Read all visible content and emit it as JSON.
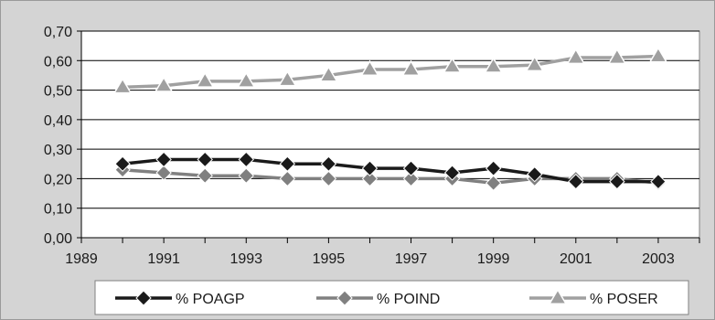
{
  "chart_data": {
    "type": "line",
    "title": "",
    "xlabel": "",
    "ylabel": "",
    "xlim": [
      1989,
      2004
    ],
    "ylim": [
      0,
      0.7
    ],
    "x_ticks": [
      1989,
      1991,
      1993,
      1995,
      1997,
      1999,
      2001,
      2003
    ],
    "x_tick_labels": [
      "1989",
      "1991",
      "1993",
      "1995",
      "1997",
      "1999",
      "2001",
      "2003"
    ],
    "y_ticks": [
      0,
      0.1,
      0.2,
      0.3,
      0.4,
      0.5,
      0.6,
      0.7
    ],
    "y_tick_labels": [
      "0,00",
      "0,10",
      "0,20",
      "0,30",
      "0,40",
      "0,50",
      "0,60",
      "0,70"
    ],
    "grid": "horizontal",
    "legend_position": "bottom",
    "x": [
      1990,
      1991,
      1992,
      1993,
      1994,
      1995,
      1996,
      1997,
      1998,
      1999,
      2000,
      2001,
      2002,
      2003
    ],
    "series": [
      {
        "name": "% POAGP",
        "marker": "diamond",
        "color": "#1a1a1a",
        "values": [
          0.25,
          0.265,
          0.265,
          0.265,
          0.25,
          0.25,
          0.235,
          0.235,
          0.22,
          0.235,
          0.215,
          0.19,
          0.19,
          0.19
        ]
      },
      {
        "name": "% POIND",
        "marker": "diamond",
        "color": "#808080",
        "values": [
          0.23,
          0.22,
          0.21,
          0.21,
          0.2,
          0.2,
          0.2,
          0.2,
          0.2,
          0.185,
          0.2,
          0.2,
          0.2,
          0.185
        ]
      },
      {
        "name": "% POSER",
        "marker": "triangle",
        "color": "#a0a0a0",
        "values": [
          0.51,
          0.515,
          0.53,
          0.53,
          0.535,
          0.55,
          0.57,
          0.57,
          0.58,
          0.58,
          0.585,
          0.61,
          0.61,
          0.615
        ]
      }
    ]
  }
}
